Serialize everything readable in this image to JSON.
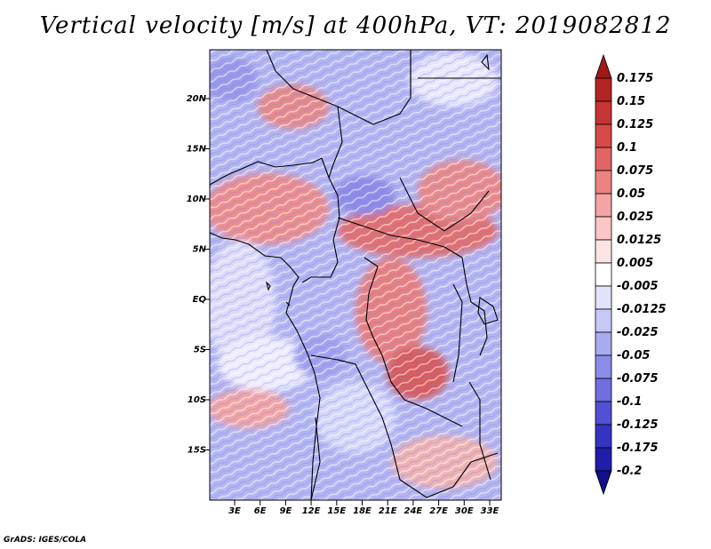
{
  "title": "Vertical velocity [m/s] at 400hPa, VT: 2019082812",
  "credit": "GrADS: IGES/COLA",
  "map": {
    "variable": "vertical velocity",
    "units": "m/s",
    "level": "400hPa",
    "valid_time": "2019082812",
    "lat_ticks": [
      "20N",
      "15N",
      "10N",
      "5N",
      "EQ",
      "5S",
      "10S",
      "15S"
    ],
    "lon_ticks": [
      "3E",
      "6E",
      "9E",
      "12E",
      "15E",
      "18E",
      "21E",
      "24E",
      "27E",
      "30E",
      "33E"
    ]
  },
  "colorbar": {
    "labels": [
      "0.175",
      "0.15",
      "0.125",
      "0.1",
      "0.075",
      "0.05",
      "0.025",
      "0.0125",
      "0.005",
      "-0.005",
      "-0.0125",
      "-0.025",
      "-0.05",
      "-0.075",
      "-0.1",
      "-0.125",
      "-0.175",
      "-0.2"
    ],
    "colors": [
      "#a01818",
      "#b42424",
      "#c63434",
      "#d64a4a",
      "#e26464",
      "#ec8282",
      "#f4a4a4",
      "#fac6c6",
      "#fde4e4",
      "#ffffff",
      "#e2e2fa",
      "#c8c8f6",
      "#aaaaf0",
      "#8c8ce8",
      "#6e6ee0",
      "#5050d2",
      "#3434c0",
      "#1e1eaa",
      "#10108c"
    ]
  }
}
